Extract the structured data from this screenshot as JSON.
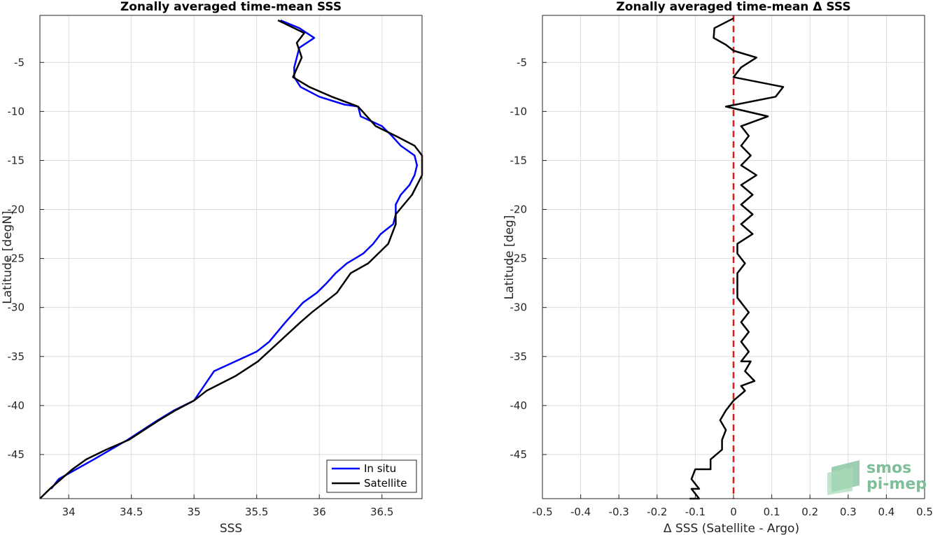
{
  "chart_data": [
    {
      "type": "line",
      "title": "Zonally averaged time-mean SSS",
      "xlabel": "SSS",
      "ylabel": "Latitude [degN]",
      "xlim": [
        33.77,
        36.82
      ],
      "ylim": [
        -49.5,
        -0.2
      ],
      "xticks": [
        34,
        34.5,
        35,
        35.5,
        36,
        36.5
      ],
      "xtick_labels": [
        "34",
        "34.5",
        "35",
        "35.5",
        "36",
        "36.5"
      ],
      "yticks": [
        -5,
        -10,
        -15,
        -20,
        -25,
        -30,
        -35,
        -40,
        -45
      ],
      "ytick_labels": [
        "-5",
        "-10",
        "-15",
        "-20",
        "-25",
        "-30",
        "-35",
        "-40",
        "-45"
      ],
      "grid": true,
      "legend": "bottom-right",
      "series": [
        {
          "name": "In situ",
          "color": "#0000ff",
          "x": [
            35.69,
            35.84,
            35.96,
            35.84,
            35.82,
            35.8,
            35.8,
            35.85,
            36.0,
            36.2,
            36.31,
            36.33,
            36.5,
            36.58,
            36.65,
            36.76,
            36.78,
            36.76,
            36.72,
            36.65,
            36.61,
            36.61,
            36.59,
            36.49,
            36.43,
            36.35,
            36.22,
            36.13,
            36.06,
            35.98,
            35.87,
            35.73,
            35.6,
            35.5,
            35.33,
            35.16,
            35.0,
            34.84,
            34.71,
            34.47,
            34.2,
            34.06,
            33.92,
            33.86
          ],
          "y": [
            -0.7,
            -1.5,
            -2.5,
            -3.5,
            -4.5,
            -5.5,
            -6.5,
            -7.5,
            -8.5,
            -9.3,
            -9.5,
            -10.5,
            -11.5,
            -12.5,
            -13.5,
            -14.5,
            -15.5,
            -16.5,
            -17.5,
            -18.5,
            -19.5,
            -20.5,
            -21.5,
            -22.5,
            -23.5,
            -24.5,
            -25.5,
            -26.5,
            -27.5,
            -28.5,
            -29.5,
            -31.5,
            -33.5,
            -34.5,
            -35.5,
            -36.5,
            -39.5,
            -40.5,
            -41.5,
            -43.5,
            -45.5,
            -46.5,
            -47.5,
            -48.5
          ]
        },
        {
          "name": "Satellite",
          "color": "#000000",
          "x": [
            35.67,
            35.88,
            35.82,
            35.86,
            35.79,
            35.92,
            36.1,
            36.31,
            36.45,
            36.61,
            36.76,
            36.82,
            36.82,
            36.74,
            36.61,
            36.61,
            36.55,
            36.39,
            36.25,
            36.14,
            35.94,
            35.85,
            35.51,
            35.33,
            35.1,
            35.0,
            34.85,
            34.72,
            34.48,
            34.3,
            34.14,
            34.03,
            33.85,
            33.77
          ],
          "y": [
            -0.7,
            -2.0,
            -3.0,
            -4.5,
            -6.5,
            -7.5,
            -8.5,
            -9.5,
            -11.5,
            -12.5,
            -13.5,
            -14.5,
            -16.5,
            -18.5,
            -20.5,
            -21.5,
            -23.5,
            -25.5,
            -26.5,
            -28.5,
            -30.5,
            -31.5,
            -35.5,
            -37.0,
            -38.5,
            -39.5,
            -40.5,
            -41.5,
            -43.5,
            -44.5,
            -45.5,
            -46.5,
            -48.5,
            -49.5
          ]
        }
      ]
    },
    {
      "type": "line",
      "title": "Zonally averaged time-mean Δ SSS",
      "xlabel": "Δ SSS (Satellite - Argo)",
      "ylabel": "Latitude [deg]",
      "xlim": [
        -0.5,
        0.5
      ],
      "ylim": [
        -49.5,
        -0.2
      ],
      "xticks": [
        -0.5,
        -0.4,
        -0.3,
        -0.2,
        -0.1,
        0,
        0.1,
        0.2,
        0.3,
        0.4,
        0.5
      ],
      "xtick_labels": [
        "-0.5",
        "-0.4",
        "-0.3",
        "-0.2",
        "-0.1",
        "0",
        "0.1",
        "0.2",
        "0.3",
        "0.4",
        "0.5"
      ],
      "yticks": [
        -5,
        -10,
        -15,
        -20,
        -25,
        -30,
        -35,
        -40,
        -45
      ],
      "ytick_labels": [
        "-5",
        "-10",
        "-15",
        "-20",
        "-25",
        "-30",
        "-35",
        "-40",
        "-45"
      ],
      "grid": true,
      "reference_line": {
        "x": 0,
        "color": "#e31a1c",
        "style": "dashed"
      },
      "series": [
        {
          "color": "#000000",
          "x": [
            0.0,
            -0.05,
            -0.052,
            -0.02,
            0.0,
            0.06,
            0.02,
            0.0,
            0.13,
            0.11,
            -0.02,
            0.09,
            0.02,
            0.04,
            0.02,
            0.045,
            0.02,
            0.06,
            0.02,
            0.05,
            0.02,
            0.05,
            0.02,
            0.05,
            0.01,
            0.01,
            0.03,
            0.01,
            0.01,
            0.01,
            0.01,
            0.04,
            0.04,
            0.02,
            0.04,
            0.02,
            0.04,
            0.02,
            0.045,
            0.03,
            0.055,
            0.02,
            0.03,
            0.0,
            -0.02,
            -0.035,
            -0.02,
            -0.03,
            -0.03,
            -0.06,
            -0.06,
            -0.1,
            -0.11,
            -0.09,
            -0.11,
            -0.09,
            -0.115
          ],
          "y": [
            -0.5,
            -1.5,
            -2.5,
            -3.2,
            -3.8,
            -4.5,
            -5.5,
            -6.5,
            -7.5,
            -8.5,
            -9.5,
            -10.5,
            -11.5,
            -12.5,
            -13.5,
            -14.5,
            -15.5,
            -16.5,
            -17.5,
            -18.5,
            -19.5,
            -20.5,
            -21.5,
            -22.5,
            -23.5,
            -24.5,
            -25.5,
            -26.5,
            -27.0,
            -28.0,
            -29.0,
            -30.5,
            -30.5,
            -31.5,
            -32.5,
            -33.5,
            -34.5,
            -35.5,
            -35.5,
            -36.5,
            -37.5,
            -38.0,
            -38.5,
            -39.5,
            -40.5,
            -41.5,
            -42.5,
            -43.5,
            -44.5,
            -45.5,
            -46.5,
            -46.5,
            -47.5,
            -48.5,
            -48.5,
            -49.5,
            -49.5
          ]
        }
      ]
    }
  ],
  "legend_labels": [
    "In situ",
    "Satellite"
  ],
  "logo": {
    "line1": "smos",
    "line2": "pi-mep",
    "color": "#7fbf98"
  }
}
